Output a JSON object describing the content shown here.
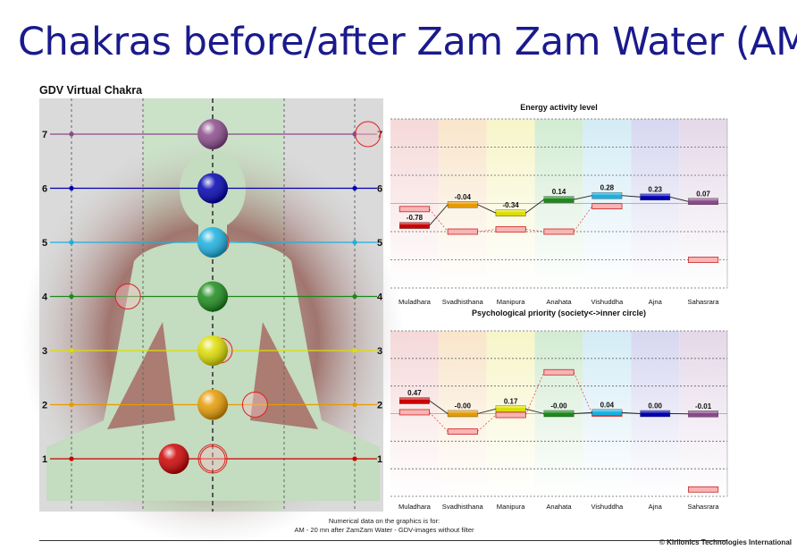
{
  "slide": {
    "title": "Chakras before/after Zam Zam Water (AM)",
    "panel_title": "GDV Virtual Chakra",
    "footnote_line1": "Numerical data on the graphics is for:",
    "footnote_line2": "AM - 20 mn after ZamZam Water - GDV-images without filter",
    "credit": "© Kirlionics Technologies International"
  },
  "colors": {
    "muladhara": "#cc0000",
    "svadhisthana": "#e69a00",
    "manipura": "#dddd00",
    "anahata": "#1a8a1a",
    "vishuddha": "#1ab0e0",
    "ajna": "#0000b0",
    "sahasrara": "#8a4a8a",
    "before_fill": "#f7b5b5",
    "before_stroke": "#cc2222"
  },
  "chart_data": [
    {
      "type": "diagram",
      "title": "GDV Virtual Chakra",
      "levels": [
        1,
        2,
        3,
        4,
        5,
        6,
        7
      ],
      "chakras": [
        {
          "level": 1,
          "color": "#cc0000",
          "shift": -0.55,
          "reference_shift": 0.0
        },
        {
          "level": 2,
          "color": "#e69a00",
          "shift": 0.0,
          "reference_shift": 0.6
        },
        {
          "level": 3,
          "color": "#dddd00",
          "shift": 0.0,
          "reference_shift": 0.1
        },
        {
          "level": 4,
          "color": "#1a8a1a",
          "shift": 0.0,
          "reference_shift": -1.2
        },
        {
          "level": 5,
          "color": "#1ab0e0",
          "shift": 0.0,
          "reference_shift": 0.05
        },
        {
          "level": 6,
          "color": "#0000b0",
          "shift": 0.0,
          "reference_shift": 0.0
        },
        {
          "level": 7,
          "color": "#8a4a8a",
          "shift": 0.0,
          "reference_shift": 2.2
        }
      ]
    },
    {
      "type": "bar",
      "title": "Energy activity level",
      "categories": [
        "Muladhara",
        "Svadhisthana",
        "Manipura",
        "Anahata",
        "Vishuddha",
        "Ajna",
        "Sahasrara"
      ],
      "series": [
        {
          "values": [
            -0.78,
            -0.04,
            -0.34,
            0.14,
            0.28,
            0.23,
            0.07
          ]
        },
        {
          "values": [
            -0.2,
            -1.0,
            -0.92,
            -1.0,
            -0.1,
            null,
            -2.0
          ]
        }
      ],
      "value_labels": [
        "-0.78",
        "-0.04",
        "-0.34",
        "0.14",
        "0.28",
        "0.23",
        "0.07"
      ],
      "ylim": [
        -3,
        3
      ]
    },
    {
      "type": "bar",
      "title": "Psychological priority (society<->inner circle)",
      "categories": [
        "Muladhara",
        "Svadhisthana",
        "Manipura",
        "Anahata",
        "Vishuddha",
        "Ajna",
        "Sahasrara"
      ],
      "series": [
        {
          "values": [
            0.47,
            -0.0,
            0.17,
            -0.0,
            0.04,
            0.0,
            -0.01
          ]
        },
        {
          "values": [
            0.05,
            -0.65,
            -0.05,
            1.5,
            0.0,
            null,
            -2.75
          ]
        }
      ],
      "value_labels": [
        "0.47",
        "-0.00",
        "0.17",
        "-0.00",
        "0.04",
        "0.00",
        "-0.01"
      ],
      "ylim": [
        -3,
        3
      ]
    }
  ]
}
